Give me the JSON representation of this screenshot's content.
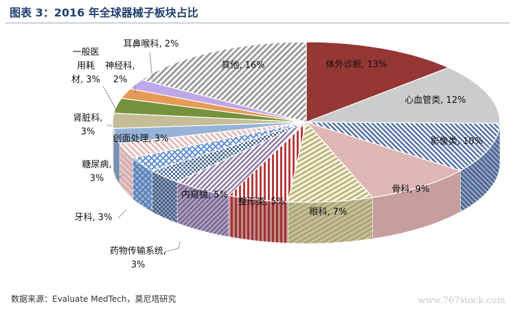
{
  "figure": {
    "title": "图表 3：2016 年全球器械子板块占比",
    "source": "数据来源：Evaluate MedTech，莫尼塔研究",
    "watermark": "www.767stock.com"
  },
  "chart_data": {
    "type": "pie",
    "style": "3d",
    "unit": "%",
    "title": "图表 3：2016 年全球器械子板块占比",
    "slices": [
      {
        "label": "体外诊断",
        "value": 13,
        "display": "体外诊断, 13%",
        "color": "#953735"
      },
      {
        "label": "心血管类",
        "value": 12,
        "display": "心血管类, 12%",
        "color": "#c9c9c9"
      },
      {
        "label": "影像类",
        "value": 10,
        "display": "影像类, 10%",
        "color": "#8ea9d0"
      },
      {
        "label": "骨科",
        "value": 9,
        "display": "骨科, 9%",
        "color": "#e6b9b8"
      },
      {
        "label": "眼科",
        "value": 7,
        "display": "眼科, 7%",
        "color": "#d8d4a8"
      },
      {
        "label": "整形类",
        "value": 5,
        "display": "整形类, 5%",
        "color": "#b53a3a"
      },
      {
        "label": "内窥镜",
        "value": 5,
        "display": "内窥镜, 5%",
        "color": "#8a76a8"
      },
      {
        "label": "药物传输系统",
        "value": 3,
        "display": "药物传输系统, 3%",
        "color": "#5e7fb0"
      },
      {
        "label": "牙科",
        "value": 3,
        "display": "牙科, 3%",
        "color": "#5f8fd0"
      },
      {
        "label": "糖尿病",
        "value": 3,
        "display": "糖尿病, 3%",
        "color": "#e6b9b8"
      },
      {
        "label": "创面处理",
        "value": 3,
        "display": "创面处理, 3%",
        "color": "#95b3d7"
      },
      {
        "label": "肾脏科",
        "value": 3,
        "display": "肾脏科, 3%",
        "color": "#c4bd97"
      },
      {
        "label": "一般医用耗材",
        "value": 3,
        "display": "一般医用耗材, 3%",
        "color": "#76923c"
      },
      {
        "label": "神经科",
        "value": 2,
        "display": "神经科, 2%",
        "color": "#e59a55"
      },
      {
        "label": "耳鼻喉科",
        "value": 2,
        "display": "耳鼻喉科, 2%",
        "color": "#c0a8e8"
      },
      {
        "label": "其他",
        "value": 16,
        "display": "其他, 16%",
        "color": "#987445"
      }
    ]
  }
}
